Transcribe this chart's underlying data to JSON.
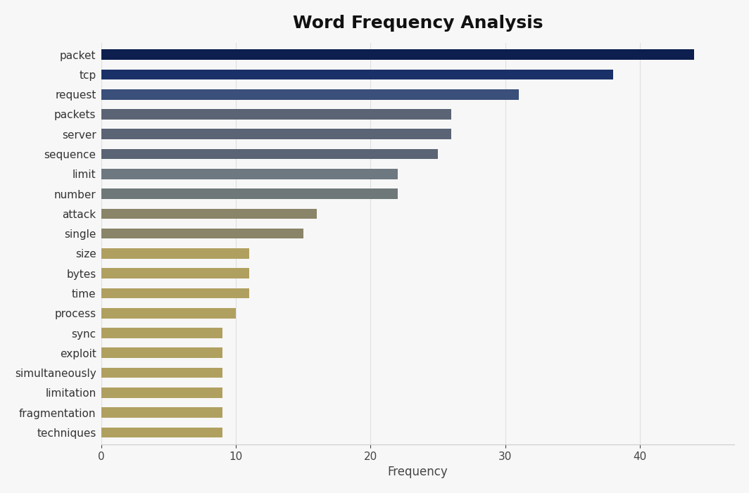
{
  "title": "Word Frequency Analysis",
  "xlabel": "Frequency",
  "categories": [
    "packet",
    "tcp",
    "request",
    "packets",
    "server",
    "sequence",
    "limit",
    "number",
    "attack",
    "single",
    "size",
    "bytes",
    "time",
    "process",
    "sync",
    "exploit",
    "simultaneously",
    "limitation",
    "fragmentation",
    "techniques"
  ],
  "values": [
    44,
    38,
    31,
    26,
    26,
    25,
    22,
    22,
    16,
    15,
    11,
    11,
    11,
    10,
    9,
    9,
    9,
    9,
    9,
    9
  ],
  "bar_colors": [
    "#0d1f4e",
    "#1a3068",
    "#3a4f7a",
    "#5b6475",
    "#5b6475",
    "#5b6475",
    "#6e7880",
    "#6e7878",
    "#8a8468",
    "#8a8468",
    "#b0a060",
    "#b0a060",
    "#b0a060",
    "#b0a060",
    "#b0a060",
    "#b0a060",
    "#b0a060",
    "#b0a060",
    "#b0a060",
    "#b0a060"
  ],
  "background_color": "#f7f7f7",
  "title_fontsize": 18,
  "axis_fontsize": 12,
  "tick_fontsize": 11,
  "xlim": [
    0,
    47
  ],
  "xticks": [
    0,
    10,
    20,
    30,
    40
  ]
}
